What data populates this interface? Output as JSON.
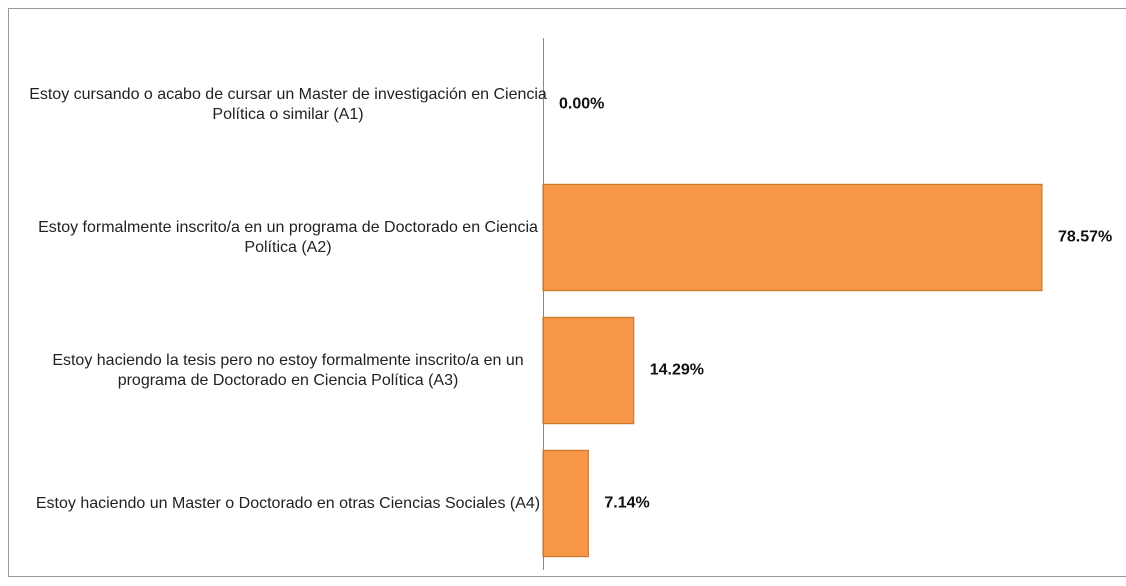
{
  "chart_data": {
    "type": "bar",
    "orientation": "horizontal",
    "categories": [
      "Estoy cursando o acabo de cursar un Master de investigación en Ciencia Política o similar (A1)",
      "Estoy formalmente inscrito/a en un programa de Doctorado en Ciencia Política (A2)",
      "Estoy haciendo la tesis pero no estoy formalmente inscrito/a en un programa de Doctorado en Ciencia Política (A3)",
      "Estoy haciendo un Master o Doctorado en otras Ciencias Sociales (A4)"
    ],
    "values": [
      0,
      78.57,
      14.29,
      7.14
    ],
    "value_labels": [
      "0.00%",
      "78.57%",
      "14.29%",
      "7.14%"
    ],
    "color": "#f79646"
  }
}
